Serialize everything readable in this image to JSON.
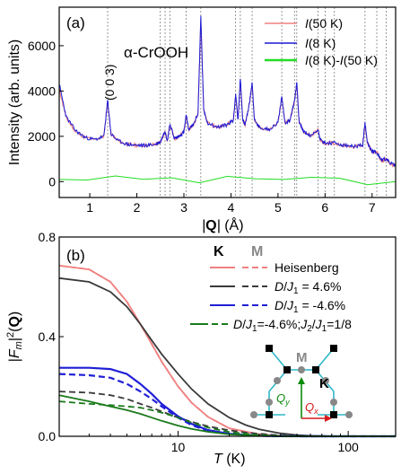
{
  "chart_data": [
    {
      "panel": "(a)",
      "type": "line",
      "annotation": "α-CrOOH",
      "peak_label": "(0 0 3)",
      "xlabel": "|Q| (Å)",
      "ylabel": "Intensity (arb. units)",
      "xlim": [
        0.35,
        7.5
      ],
      "ylim": [
        -700,
        7700
      ],
      "xticks": [
        1,
        2,
        3,
        4,
        5,
        6,
        7
      ],
      "yticks": [
        0,
        2000,
        4000,
        6000
      ],
      "legend_position": "top-right",
      "grid": false,
      "series": [
        {
          "name": "I(50 K)",
          "legend": {
            "italic": "I",
            "rest": "(50 K)"
          },
          "color": "#f08080",
          "x": [
            0.35,
            0.5,
            0.7,
            0.9,
            1.1,
            1.3,
            1.38,
            1.45,
            1.6,
            1.8,
            2.0,
            2.2,
            2.4,
            2.5,
            2.6,
            2.65,
            2.7,
            2.8,
            2.9,
            3.0,
            3.05,
            3.1,
            3.2,
            3.3,
            3.36,
            3.42,
            3.5,
            3.7,
            3.9,
            4.05,
            4.1,
            4.15,
            4.2,
            4.25,
            4.3,
            4.4,
            4.45,
            4.5,
            4.6,
            4.8,
            5.0,
            5.08,
            5.15,
            5.25,
            5.35,
            5.4,
            5.45,
            5.55,
            5.7,
            5.85,
            5.9,
            6.0,
            6.2,
            6.4,
            6.6,
            6.8,
            6.85,
            6.9,
            7.0,
            7.1,
            7.2,
            7.3,
            7.4,
            7.5
          ],
          "y": [
            4100,
            2800,
            2200,
            1950,
            1850,
            2000,
            3550,
            2100,
            1800,
            1650,
            1600,
            1600,
            1650,
            1750,
            2200,
            1800,
            2500,
            1900,
            2000,
            2200,
            2900,
            2300,
            2500,
            3000,
            7200,
            3200,
            2600,
            2400,
            2500,
            2700,
            3800,
            2700,
            4500,
            2700,
            2500,
            3500,
            4300,
            2700,
            2400,
            2300,
            2600,
            3700,
            2600,
            2700,
            3500,
            4300,
            2600,
            2200,
            2000,
            2300,
            1800,
            1700,
            1700,
            1600,
            1550,
            1600,
            2500,
            1700,
            1300,
            1300,
            900,
            1000,
            750,
            700
          ]
        },
        {
          "name": "I(8 K)",
          "legend": {
            "italic": "I",
            "rest": "(8 K)"
          },
          "color": "#1a1ad6",
          "x": [
            0.35,
            0.5,
            0.7,
            0.9,
            1.1,
            1.3,
            1.38,
            1.45,
            1.6,
            1.8,
            2.0,
            2.2,
            2.4,
            2.5,
            2.6,
            2.65,
            2.7,
            2.8,
            2.9,
            3.0,
            3.05,
            3.1,
            3.2,
            3.3,
            3.36,
            3.42,
            3.5,
            3.7,
            3.9,
            4.05,
            4.1,
            4.15,
            4.2,
            4.25,
            4.3,
            4.4,
            4.45,
            4.5,
            4.6,
            4.8,
            5.0,
            5.08,
            5.15,
            5.25,
            5.35,
            5.4,
            5.45,
            5.55,
            5.7,
            5.85,
            5.9,
            6.0,
            6.2,
            6.4,
            6.6,
            6.8,
            6.85,
            6.9,
            7.0,
            7.1,
            7.2,
            7.3,
            7.4,
            7.5
          ],
          "y": [
            4300,
            2850,
            2250,
            1950,
            1850,
            2000,
            3600,
            2100,
            1800,
            1650,
            1600,
            1600,
            1650,
            1750,
            2250,
            1800,
            2550,
            1900,
            2000,
            2200,
            2950,
            2300,
            2500,
            3000,
            7300,
            3200,
            2600,
            2400,
            2500,
            2700,
            3850,
            2700,
            4600,
            2700,
            2500,
            3550,
            4400,
            2700,
            2400,
            2300,
            2600,
            3750,
            2600,
            2700,
            3550,
            4400,
            2600,
            2200,
            2000,
            2300,
            1850,
            1700,
            1700,
            1600,
            1550,
            1600,
            2600,
            1700,
            1350,
            1300,
            950,
            1000,
            800,
            700
          ]
        },
        {
          "name": "I(8 K)-I(50 K)",
          "legend": {
            "italic": "I",
            "rest": "(8 K)-",
            "italic2": "I",
            "rest2": "(50 K)"
          },
          "color": "#22dd22",
          "x": [
            0.35,
            7.5
          ],
          "y": [
            0,
            0
          ]
        }
      ]
    },
    {
      "panel": "(b)",
      "type": "line",
      "xscale": "log",
      "xlabel": "T (K)",
      "ylabel": "|F_m|²(Q)",
      "xlim": [
        2,
        190
      ],
      "ylim": [
        0,
        0.8
      ],
      "xticks": [
        10,
        100
      ],
      "yticks": [
        0.0,
        0.4,
        0.8
      ],
      "legend_header": {
        "K": "K",
        "M": "M"
      },
      "legend_position": "top-right",
      "inset_labels": {
        "M": "M",
        "K": "K",
        "Qy": "Q",
        "Qy_sub": "y",
        "Qx": "Q",
        "Qx_sub": "x"
      },
      "series": [
        {
          "name": "Heisenberg",
          "style": "K",
          "color": "#f08080",
          "x": [
            2,
            3,
            4,
            5,
            6,
            7,
            8,
            10,
            12,
            15,
            20,
            30,
            40,
            50,
            70,
            100,
            150,
            190
          ],
          "y": [
            0.685,
            0.67,
            0.62,
            0.54,
            0.45,
            0.37,
            0.3,
            0.2,
            0.135,
            0.078,
            0.032,
            0.008,
            0.002,
            0.0005,
            0,
            0,
            0,
            0
          ]
        },
        {
          "name": "Heisenberg",
          "style": "M",
          "color": "#f08080",
          "x": [
            2,
            3,
            4,
            5,
            6,
            7,
            8,
            10,
            12,
            15,
            20,
            30,
            40,
            50,
            70,
            100,
            150,
            190
          ],
          "y": [
            0.685,
            0.67,
            0.62,
            0.54,
            0.45,
            0.37,
            0.3,
            0.2,
            0.135,
            0.078,
            0.032,
            0.008,
            0.002,
            0.0005,
            0,
            0,
            0,
            0
          ]
        },
        {
          "name": "D/J1 = 4.6%",
          "style": "K",
          "color": "#3a3a3a",
          "x": [
            2,
            3,
            4,
            5,
            6,
            7,
            8,
            10,
            12,
            15,
            20,
            25,
            30,
            40,
            50,
            60,
            80,
            100,
            150,
            190
          ],
          "y": [
            0.635,
            0.62,
            0.58,
            0.52,
            0.45,
            0.385,
            0.33,
            0.25,
            0.19,
            0.13,
            0.075,
            0.045,
            0.028,
            0.012,
            0.005,
            0.002,
            0.0005,
            0,
            0,
            0
          ]
        },
        {
          "name": "D/J1 = 4.6%",
          "style": "M",
          "color": "#3a3a3a",
          "x": [
            2,
            3,
            4,
            5,
            6,
            7,
            8,
            10,
            12,
            15,
            20,
            25,
            30,
            40,
            50,
            60,
            80,
            100,
            150,
            190
          ],
          "y": [
            0.18,
            0.175,
            0.165,
            0.15,
            0.13,
            0.115,
            0.1,
            0.075,
            0.058,
            0.04,
            0.024,
            0.015,
            0.01,
            0.004,
            0.002,
            0.001,
            0,
            0,
            0,
            0
          ]
        },
        {
          "name": "D/J1 = -4.6%",
          "style": "K",
          "color": "#1f1fd6",
          "x": [
            2,
            3,
            4,
            5,
            6,
            7,
            8,
            10,
            12,
            15,
            20,
            30,
            40,
            60,
            100,
            190
          ],
          "y": [
            0.275,
            0.275,
            0.27,
            0.25,
            0.21,
            0.17,
            0.13,
            0.08,
            0.05,
            0.025,
            0.01,
            0.002,
            0.0005,
            0,
            0,
            0
          ]
        },
        {
          "name": "D/J1 = -4.6%",
          "style": "M",
          "color": "#1f1fd6",
          "x": [
            2,
            3,
            4,
            5,
            6,
            7,
            8,
            10,
            12,
            15,
            20,
            30,
            40,
            60,
            100,
            190
          ],
          "y": [
            0.25,
            0.245,
            0.235,
            0.21,
            0.18,
            0.15,
            0.12,
            0.075,
            0.045,
            0.022,
            0.009,
            0.002,
            0.0005,
            0,
            0,
            0
          ]
        },
        {
          "name": "D/J1=-4.6%;J2/J1=1/8",
          "style": "K",
          "color": "#1a7a1a",
          "x": [
            2,
            3,
            4,
            5,
            6,
            7,
            8,
            10,
            12,
            15,
            20,
            30,
            40,
            60,
            100,
            190
          ],
          "y": [
            0.165,
            0.14,
            0.12,
            0.105,
            0.09,
            0.075,
            0.062,
            0.043,
            0.03,
            0.018,
            0.008,
            0.002,
            0.0005,
            0,
            0,
            0
          ]
        },
        {
          "name": "D/J1=-4.6%;J2/J1=1/8",
          "style": "M",
          "color": "#1a7a1a",
          "x": [
            2,
            3,
            4,
            5,
            6,
            7,
            8,
            10,
            12,
            15,
            20,
            30,
            40,
            60,
            100,
            190
          ],
          "y": [
            0.14,
            0.13,
            0.125,
            0.12,
            0.115,
            0.105,
            0.095,
            0.075,
            0.055,
            0.035,
            0.017,
            0.005,
            0.001,
            0,
            0,
            0
          ]
        }
      ]
    }
  ]
}
